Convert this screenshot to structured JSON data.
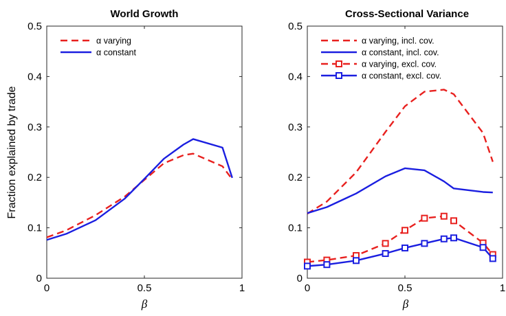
{
  "chart_data": [
    {
      "type": "line",
      "title": "World Growth",
      "xlabel": "β",
      "ylabel": "Fraction explained by trade",
      "xlim": [
        0,
        1
      ],
      "ylim": [
        0,
        0.5
      ],
      "xticks": [
        0,
        0.5,
        1
      ],
      "xtick_labels": [
        "0",
        "0.5",
        "1"
      ],
      "yticks": [
        0,
        0.1,
        0.2,
        0.3,
        0.4,
        0.5
      ],
      "ytick_labels": [
        "0",
        "0.1",
        "0.2",
        "0.3",
        "0.4",
        "0.5"
      ],
      "grid": false,
      "legend_position": "top-left",
      "series": [
        {
          "name": "α varying",
          "color": "#e8201e",
          "style": "dashed",
          "marker": "none",
          "x": [
            0,
            0.1,
            0.25,
            0.4,
            0.5,
            0.6,
            0.7,
            0.75,
            0.9,
            0.95
          ],
          "y": [
            0.081,
            0.095,
            0.125,
            0.162,
            0.195,
            0.228,
            0.244,
            0.247,
            0.222,
            0.196
          ]
        },
        {
          "name": "α constant",
          "color": "#1a1ee0",
          "style": "solid",
          "marker": "none",
          "x": [
            0,
            0.1,
            0.25,
            0.4,
            0.5,
            0.6,
            0.7,
            0.75,
            0.9,
            0.95
          ],
          "y": [
            0.076,
            0.088,
            0.115,
            0.158,
            0.197,
            0.237,
            0.265,
            0.276,
            0.259,
            0.199
          ]
        }
      ]
    },
    {
      "type": "line",
      "title": "Cross-Sectional Variance",
      "xlabel": "β",
      "ylabel": "",
      "xlim": [
        0,
        1
      ],
      "ylim": [
        0,
        0.5
      ],
      "xticks": [
        0,
        0.5,
        1
      ],
      "xtick_labels": [
        "0",
        "0.5",
        "1"
      ],
      "yticks": [
        0,
        0.1,
        0.2,
        0.3,
        0.4,
        0.5
      ],
      "ytick_labels": [
        "0",
        "0.1",
        "0.2",
        "0.3",
        "0.4",
        "0.5"
      ],
      "grid": false,
      "legend_position": "top-left",
      "series": [
        {
          "name": "α varying, incl. cov.",
          "color": "#e8201e",
          "style": "dashed",
          "marker": "none",
          "x": [
            0,
            0.1,
            0.25,
            0.4,
            0.5,
            0.6,
            0.7,
            0.75,
            0.9,
            0.95
          ],
          "y": [
            0.128,
            0.152,
            0.21,
            0.29,
            0.341,
            0.37,
            0.374,
            0.365,
            0.288,
            0.231
          ]
        },
        {
          "name": "α constant, incl. cov.",
          "color": "#1a1ee0",
          "style": "solid",
          "marker": "none",
          "x": [
            0,
            0.1,
            0.25,
            0.4,
            0.5,
            0.6,
            0.7,
            0.75,
            0.9,
            0.95
          ],
          "y": [
            0.129,
            0.141,
            0.168,
            0.202,
            0.218,
            0.214,
            0.192,
            0.178,
            0.171,
            0.17
          ]
        },
        {
          "name": "α varying, excl. cov.",
          "color": "#e8201e",
          "style": "dashed",
          "marker": "square",
          "x": [
            0,
            0.1,
            0.25,
            0.4,
            0.5,
            0.6,
            0.7,
            0.75,
            0.9,
            0.95
          ],
          "y": [
            0.032,
            0.036,
            0.045,
            0.069,
            0.095,
            0.119,
            0.123,
            0.114,
            0.07,
            0.047
          ]
        },
        {
          "name": "α constant, excl. cov.",
          "color": "#1a1ee0",
          "style": "solid",
          "marker": "square",
          "x": [
            0,
            0.1,
            0.25,
            0.4,
            0.5,
            0.6,
            0.7,
            0.75,
            0.9,
            0.95
          ],
          "y": [
            0.024,
            0.027,
            0.035,
            0.049,
            0.06,
            0.069,
            0.078,
            0.08,
            0.061,
            0.039
          ]
        }
      ]
    }
  ]
}
